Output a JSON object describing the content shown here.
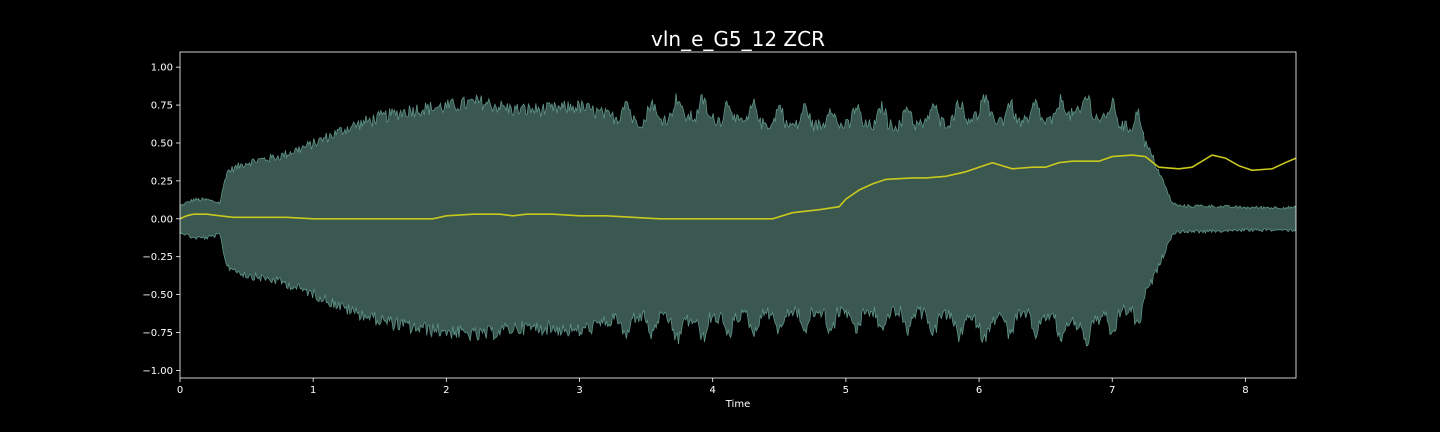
{
  "chart_data": {
    "type": "area",
    "title": "vln_e_G5_12 ZCR",
    "xlabel": "Time",
    "ylabel": "",
    "xlim": [
      0,
      8.38
    ],
    "ylim": [
      -1.05,
      1.1
    ],
    "x_ticks": [
      0,
      1,
      2,
      3,
      4,
      5,
      6,
      7,
      8
    ],
    "y_ticks": [
      -1.0,
      -0.75,
      -0.5,
      -0.25,
      0.0,
      0.25,
      0.5,
      0.75,
      1.0
    ],
    "grid": false,
    "legend": "none",
    "colors": {
      "background": "#000000",
      "waveform_fill": "#3a5750",
      "waveform_edge": "#5f9487",
      "zcr_line": "#c8c81e",
      "axes": "#ffffff"
    },
    "series": [
      {
        "kind": "waveform-envelope",
        "x": [
          0,
          0.05,
          0.1,
          0.2,
          0.3,
          0.35,
          0.5,
          0.75,
          1.0,
          1.25,
          1.5,
          1.75,
          2.0,
          2.25,
          2.5,
          2.75,
          3.0,
          3.25,
          3.5,
          3.75,
          4.0,
          4.25,
          4.5,
          4.75,
          5.0,
          5.25,
          5.5,
          5.75,
          6.0,
          6.25,
          6.5,
          6.75,
          7.0,
          7.2,
          7.3,
          7.4,
          7.45,
          7.5,
          7.7,
          8.0,
          8.38
        ],
        "upper": [
          0.08,
          0.1,
          0.12,
          0.12,
          0.1,
          0.3,
          0.36,
          0.4,
          0.48,
          0.58,
          0.65,
          0.7,
          0.72,
          0.75,
          0.7,
          0.7,
          0.72,
          0.65,
          0.62,
          0.66,
          0.64,
          0.62,
          0.6,
          0.6,
          0.6,
          0.6,
          0.6,
          0.62,
          0.66,
          0.62,
          0.62,
          0.68,
          0.62,
          0.56,
          0.4,
          0.2,
          0.1,
          0.08,
          0.08,
          0.07,
          0.07
        ],
        "lower": [
          -0.08,
          -0.1,
          -0.12,
          -0.12,
          -0.1,
          -0.3,
          -0.36,
          -0.4,
          -0.48,
          -0.58,
          -0.65,
          -0.7,
          -0.72,
          -0.75,
          -0.7,
          -0.7,
          -0.72,
          -0.65,
          -0.62,
          -0.66,
          -0.64,
          -0.62,
          -0.6,
          -0.6,
          -0.6,
          -0.6,
          -0.6,
          -0.62,
          -0.66,
          -0.62,
          -0.62,
          -0.68,
          -0.62,
          -0.56,
          -0.4,
          -0.2,
          -0.1,
          -0.08,
          -0.08,
          -0.07,
          -0.07
        ]
      },
      {
        "kind": "zcr-line",
        "x": [
          0,
          0.05,
          0.1,
          0.2,
          0.3,
          0.4,
          0.6,
          0.8,
          1.0,
          1.3,
          1.6,
          1.9,
          2.0,
          2.2,
          2.4,
          2.5,
          2.6,
          2.8,
          3.0,
          3.2,
          3.4,
          3.6,
          3.8,
          4.0,
          4.2,
          4.45,
          4.6,
          4.8,
          4.95,
          5.0,
          5.1,
          5.2,
          5.3,
          5.5,
          5.6,
          5.75,
          5.9,
          6.0,
          6.1,
          6.25,
          6.4,
          6.5,
          6.6,
          6.7,
          6.9,
          7.0,
          7.15,
          7.25,
          7.35,
          7.5,
          7.6,
          7.75,
          7.85,
          7.95,
          8.05,
          8.2,
          8.3,
          8.38
        ],
        "y": [
          0.0,
          0.02,
          0.03,
          0.03,
          0.02,
          0.01,
          0.01,
          0.01,
          0.0,
          0.0,
          0.0,
          0.0,
          0.02,
          0.03,
          0.03,
          0.02,
          0.03,
          0.03,
          0.02,
          0.02,
          0.01,
          0.0,
          0.0,
          0.0,
          0.0,
          0.0,
          0.04,
          0.06,
          0.08,
          0.13,
          0.19,
          0.23,
          0.26,
          0.27,
          0.27,
          0.28,
          0.31,
          0.34,
          0.37,
          0.33,
          0.34,
          0.34,
          0.37,
          0.38,
          0.38,
          0.41,
          0.42,
          0.41,
          0.34,
          0.33,
          0.34,
          0.42,
          0.4,
          0.35,
          0.32,
          0.33,
          0.37,
          0.4
        ]
      }
    ]
  }
}
